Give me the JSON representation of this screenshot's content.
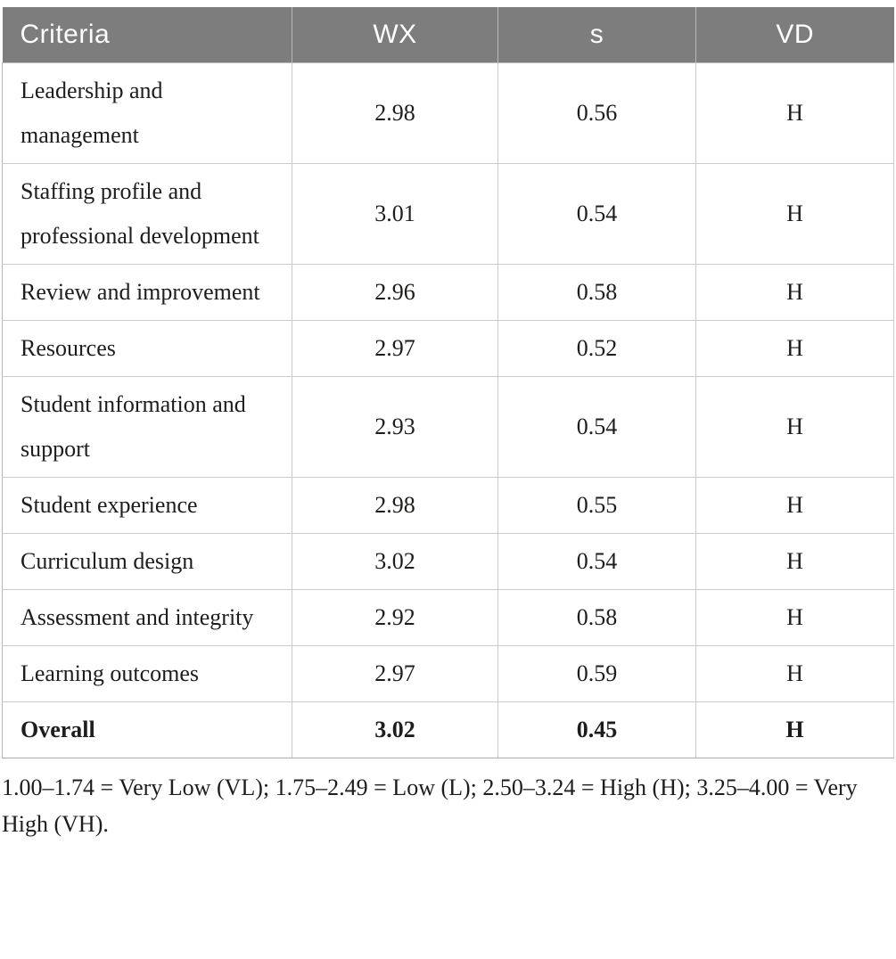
{
  "table": {
    "columns": [
      {
        "key": "criteria",
        "label": "Criteria",
        "align": "left"
      },
      {
        "key": "wx",
        "label": "WX",
        "align": "center"
      },
      {
        "key": "s",
        "label": "s",
        "align": "center"
      },
      {
        "key": "vd",
        "label": "VD",
        "align": "center"
      }
    ],
    "rows": [
      {
        "criteria": "Leadership and management",
        "wx": "2.98",
        "s": "0.56",
        "vd": "H",
        "bold": false
      },
      {
        "criteria": "Staffing profile and professional development",
        "wx": "3.01",
        "s": "0.54",
        "vd": "H",
        "bold": false
      },
      {
        "criteria": "Review and improvement",
        "wx": "2.96",
        "s": "0.58",
        "vd": "H",
        "bold": false
      },
      {
        "criteria": "Resources",
        "wx": "2.97",
        "s": "0.52",
        "vd": "H",
        "bold": false
      },
      {
        "criteria": "Student information and support",
        "wx": "2.93",
        "s": "0.54",
        "vd": "H",
        "bold": false
      },
      {
        "criteria": "Student experience",
        "wx": "2.98",
        "s": "0.55",
        "vd": "H",
        "bold": false
      },
      {
        "criteria": "Curriculum design",
        "wx": "3.02",
        "s": "0.54",
        "vd": "H",
        "bold": false
      },
      {
        "criteria": "Assessment and integrity",
        "wx": "2.92",
        "s": "0.58",
        "vd": "H",
        "bold": false
      },
      {
        "criteria": "Learning outcomes",
        "wx": "2.97",
        "s": "0.59",
        "vd": "H",
        "bold": false
      },
      {
        "criteria": "Overall",
        "wx": "3.02",
        "s": "0.45",
        "vd": "H",
        "bold": true
      }
    ]
  },
  "footnote": "1.00–1.74 = Very Low (VL); 1.75–2.49 = Low (L); 2.50–3.24 = High (H); 3.25–4.00 = Very High (VH).",
  "colors": {
    "header_bg": "#7d7d7d",
    "header_text": "#fdfdfd",
    "body_text": "#1d1d1b",
    "grid_h": "#c9cccd",
    "grid_v": "#b3b6b7",
    "outer_border": "#a9acad"
  }
}
